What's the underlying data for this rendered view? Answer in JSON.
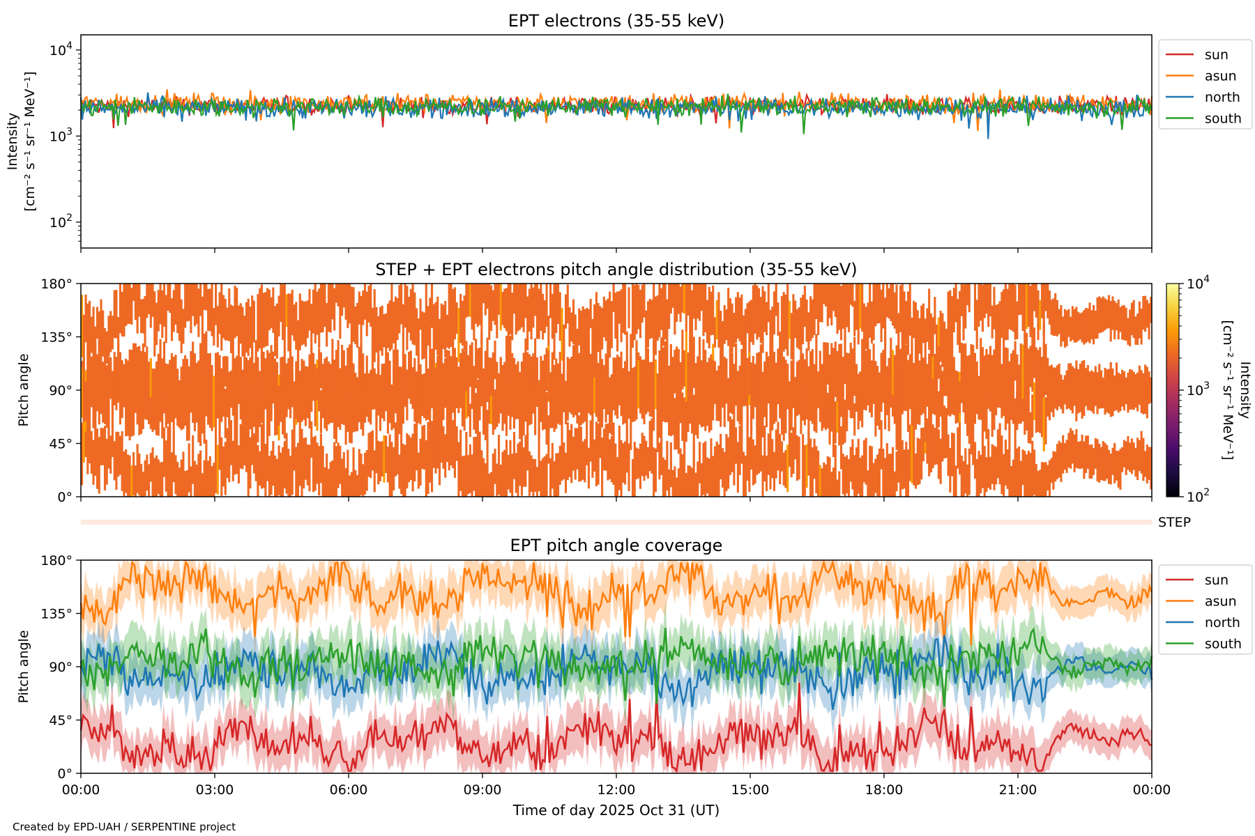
{
  "chart_data": [
    {
      "type": "line",
      "title": "EPT electrons (35-55 keV)",
      "ylabel": [
        "Intensity",
        "[cm⁻² s⁻¹ sr⁻¹ MeV⁻¹]"
      ],
      "yscale": "log",
      "ylim": [
        50,
        15000
      ],
      "yticks": [
        {
          "value": 100,
          "label": "10",
          "exp": "2"
        },
        {
          "value": 1000,
          "label": "10",
          "exp": "3"
        },
        {
          "value": 10000,
          "label": "10",
          "exp": "4"
        }
      ],
      "xlim": [
        "00:00",
        "24:00"
      ],
      "legend": "outside-right-top",
      "series": [
        {
          "name": "sun",
          "color": "#d62728",
          "center": 2250,
          "spread": 0.09
        },
        {
          "name": "asun",
          "color": "#ff7f0e",
          "center": 2400,
          "spread": 0.1
        },
        {
          "name": "north",
          "color": "#1f77b4",
          "center": 2100,
          "spread": 0.11
        },
        {
          "name": "south",
          "color": "#2ca02c",
          "center": 2200,
          "spread": 0.1
        }
      ]
    },
    {
      "type": "heatmap",
      "title": "STEP + EPT electrons pitch angle distribution (35-55 keV)",
      "ylabel": "Pitch angle",
      "ylim": [
        0,
        180
      ],
      "yticks": [
        "0°",
        "45°",
        "90°",
        "135°",
        "180°"
      ],
      "colorbar": {
        "label": [
          "Intensity",
          "[cm⁻² s⁻¹ sr⁻¹ MeV⁻¹]"
        ],
        "scale": "log",
        "range": [
          100,
          10000
        ],
        "ticks": [
          {
            "label": "10",
            "exp": "2"
          },
          {
            "label": "10",
            "exp": "3"
          },
          {
            "label": "10",
            "exp": "4"
          }
        ],
        "colors": [
          "#000004",
          "#1b0c41",
          "#4a0c6b",
          "#781c6d",
          "#a52c60",
          "#cf4446",
          "#ed6925",
          "#fb9b06",
          "#f7d13d",
          "#fcffa4"
        ]
      },
      "typical_intensity": 2300,
      "dominant_color": "#ee6a24"
    },
    {
      "type": "line",
      "title": "EPT pitch angle coverage",
      "ylabel": "Pitch angle",
      "ylim": [
        0,
        180
      ],
      "yticks": [
        "0°",
        "45°",
        "90°",
        "135°",
        "180°"
      ],
      "xlabel": "Time of day 2025 Oct 31 (UT)",
      "xticks": [
        "00:00",
        "03:00",
        "06:00",
        "09:00",
        "12:00",
        "15:00",
        "18:00",
        "21:00",
        "00:00"
      ],
      "legend": "outside-right-top",
      "series": [
        {
          "name": "sun",
          "color": "#d62728",
          "mean_angle": 25
        },
        {
          "name": "asun",
          "color": "#ff7f0e",
          "mean_angle": 155
        },
        {
          "name": "north",
          "color": "#1f77b4",
          "mean_angle": 85
        },
        {
          "name": "south",
          "color": "#2ca02c",
          "mean_angle": 95
        }
      ]
    }
  ],
  "step_label": "STEP",
  "footer": "Created by EPD-UAH / SERPENTINE project"
}
